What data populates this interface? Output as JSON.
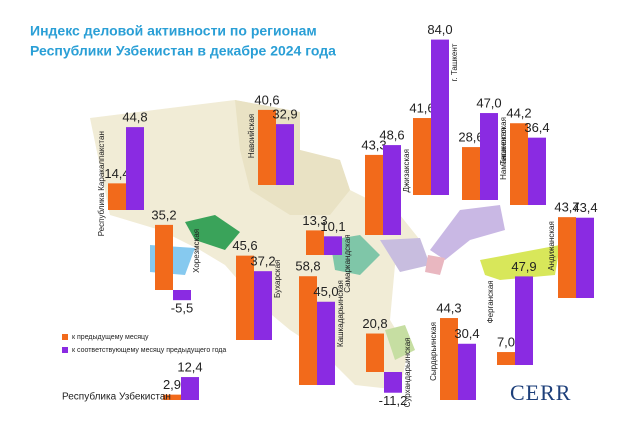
{
  "chart_data": {
    "type": "bar",
    "title": [
      "Индекс деловой активности по регионам",
      "Республики Узбекистан в декабре 2024 года"
    ],
    "categories": [
      "Республика Каракалпакстан",
      "Хорезмская",
      "Навоийская",
      "Бухарская",
      "Самаркандская",
      "Кашкадарьинская",
      "Джизакская",
      "Сурхандарьинская",
      "г. Ташкент",
      "Ташкентская",
      "Сырдарьинская",
      "Наманганская",
      "Андижанская",
      "Ферганская",
      "Республика Узбекистан"
    ],
    "series": [
      {
        "name": "к предыдущему месяцу",
        "color": "#f26a1b",
        "values": [
          14.4,
          35.2,
          40.6,
          45.6,
          13.3,
          58.8,
          43.3,
          20.8,
          41.6,
          28.6,
          44.3,
          44.2,
          43.7,
          7.0,
          2.9
        ],
        "value_labels": [
          "14,4",
          "35,2",
          "40,6",
          "45,6",
          "13,3",
          "58,8",
          "43,3",
          "20,8",
          "41,6",
          "28,6",
          "44,3",
          "44,2",
          "43,7",
          "7,0",
          "2,9"
        ]
      },
      {
        "name": "к соответствующему месяцу предыдущего года",
        "color": "#8a2be2",
        "values": [
          44.8,
          -5.5,
          32.9,
          37.2,
          10.1,
          45.0,
          48.6,
          -11.2,
          84.0,
          47.0,
          30.4,
          36.4,
          43.4,
          47.9,
          12.4
        ],
        "value_labels": [
          "44,8",
          "-5,5",
          "32,9",
          "37,2",
          "10,1",
          "45,0",
          "48,6",
          "-11,2",
          "84,0",
          "47,0",
          "30,4",
          "36,4",
          "43,4",
          "47,9",
          "12,4"
        ]
      }
    ],
    "negative_label_color": "#c0262b"
  },
  "logo": "CERR"
}
